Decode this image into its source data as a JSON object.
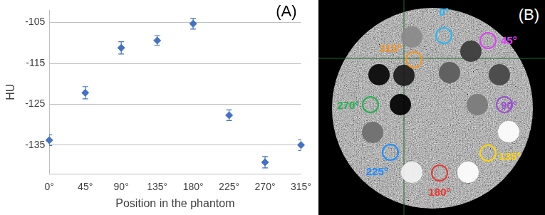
{
  "chart_data": {
    "type": "scatter",
    "annotations": [
      "(A)"
    ],
    "x_label": "Position in the phantom",
    "y_label": "HU",
    "categories": [
      "0°",
      "45°",
      "90°",
      "135°",
      "180°",
      "225°",
      "270°",
      "315°"
    ],
    "values": [
      -133.8,
      -122.2,
      -111.2,
      -109.4,
      -105.3,
      -127.7,
      -139.2,
      -135.0
    ],
    "errors": [
      1.3,
      1.5,
      1.5,
      1.2,
      1.3,
      1.3,
      1.4,
      1.3
    ],
    "color": "#4472c4",
    "marker": "diamond",
    "ylim": [
      -142,
      -102
    ],
    "yticks": [
      -135,
      -125,
      -115,
      -105
    ],
    "grid": true
  },
  "image": {
    "label": "(B)",
    "rois": [
      {
        "label": "0°",
        "color": "#29b6f6"
      },
      {
        "label": "45°",
        "color": "#e040fb"
      },
      {
        "label": "90°",
        "color": "#9b4fd0"
      },
      {
        "label": "135°",
        "color": "#ffd600"
      },
      {
        "label": "180°",
        "color": "#e53935"
      },
      {
        "label": "225°",
        "color": "#1e90ff"
      },
      {
        "label": "270°",
        "color": "#22b14c"
      },
      {
        "label": "315°",
        "color": "#f7941d"
      }
    ]
  }
}
